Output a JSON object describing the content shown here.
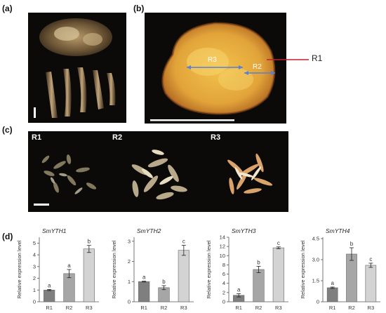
{
  "panels": {
    "a": {
      "label": "(a)"
    },
    "b": {
      "label": "(b)",
      "regions": {
        "r1": "R1",
        "r2": "R2",
        "r3": "R3"
      }
    },
    "c": {
      "label": "(c)",
      "tiles": [
        "R1",
        "R2",
        "R3"
      ]
    },
    "d": {
      "label": "(d)"
    }
  },
  "colors": {
    "bar_r1": "#7f7f7f",
    "bar_r2": "#a6a6a6",
    "bar_r3": "#d3d3d3",
    "arrow_blue": "#5b7fd1",
    "line_red": "#c0202a"
  },
  "chart_data": [
    {
      "type": "bar",
      "title": "SmYTH1",
      "ylabel": "Relative expression level",
      "categories": [
        "R1",
        "R2",
        "R3"
      ],
      "values": [
        1.0,
        2.4,
        4.5
      ],
      "errors": [
        0.05,
        0.35,
        0.3
      ],
      "letters": [
        "a",
        "a",
        "b"
      ],
      "yticks": [
        0,
        1,
        2,
        3,
        4,
        5
      ],
      "ylim": [
        0,
        5.5
      ]
    },
    {
      "type": "bar",
      "title": "SmYTH2",
      "ylabel": "Relative expression level",
      "categories": [
        "R1",
        "R2",
        "R3"
      ],
      "values": [
        1.0,
        0.7,
        2.55
      ],
      "errors": [
        0.02,
        0.1,
        0.25
      ],
      "letters": [
        "a",
        "b",
        "c"
      ],
      "yticks": [
        0,
        1,
        2,
        3
      ],
      "ylim": [
        0,
        3.2
      ]
    },
    {
      "type": "bar",
      "title": "SmYTH3",
      "ylabel": "Relative expression level",
      "categories": [
        "R1",
        "R2",
        "R3"
      ],
      "values": [
        1.4,
        7.0,
        11.7
      ],
      "errors": [
        0.35,
        0.7,
        0.2
      ],
      "letters": [
        "a",
        "b",
        "c"
      ],
      "yticks": [
        0,
        2,
        4,
        6,
        8,
        10,
        12,
        14
      ],
      "ylim": [
        0,
        14
      ]
    },
    {
      "type": "bar",
      "title": "SmYTH4",
      "ylabel": "Relative expression level",
      "categories": [
        "R1",
        "R2",
        "R3"
      ],
      "values": [
        1.0,
        3.4,
        2.6
      ],
      "errors": [
        0.05,
        0.45,
        0.15
      ],
      "letters": [
        "a",
        "b",
        "c"
      ],
      "yticks": [
        0,
        1.5,
        3.0,
        4.5
      ],
      "ytick_labels": [
        "0",
        "1.5",
        "3.0",
        "4.5"
      ],
      "ylim": [
        0,
        4.6
      ]
    }
  ]
}
